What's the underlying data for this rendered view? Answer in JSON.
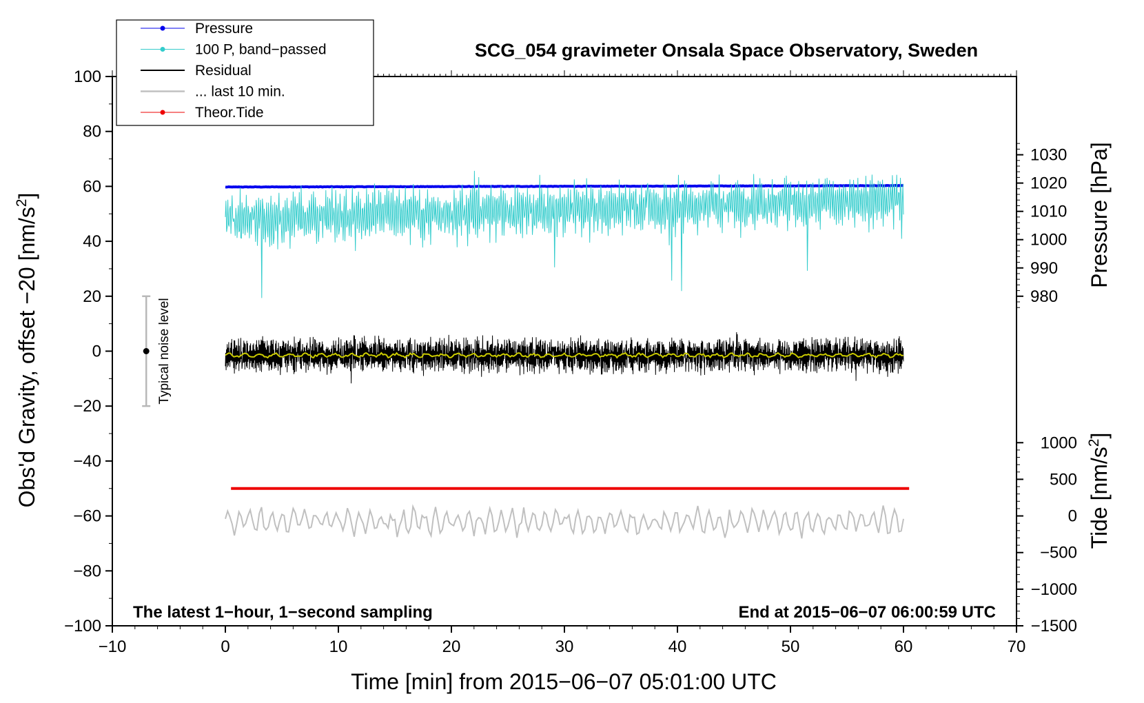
{
  "chart_data": {
    "type": "line",
    "title": "SCG_054 gravimeter Onsala Space Observatory, Sweden",
    "xlabel": "Time [min] from 2015−06−07 05:01:00 UTC",
    "ylabel": "Obs'd Gravity, offset −20 [nm/s²]",
    "ylabel_right_top": "Pressure [hPa]",
    "ylabel_right_bottom": "Tide [nm/s²]",
    "xlim": [
      -10,
      70
    ],
    "ylim": [
      -100,
      100
    ],
    "xticks": [
      -10,
      0,
      10,
      20,
      30,
      40,
      50,
      60,
      70
    ],
    "xtick_labels": [
      "−10",
      "0",
      "10",
      "20",
      "30",
      "40",
      "50",
      "60",
      "70"
    ],
    "yticks": [
      -100,
      -80,
      -60,
      -40,
      -20,
      0,
      20,
      40,
      60,
      80,
      100
    ],
    "ytick_labels": [
      "−100",
      "−80",
      "−60",
      "−40",
      "−20",
      "0",
      "20",
      "40",
      "60",
      "80",
      "100"
    ],
    "pressure_axis": {
      "ticks": [
        980,
        990,
        1000,
        1010,
        1020,
        1030
      ],
      "tick_labels": [
        "980",
        "990",
        "1000",
        "1010",
        "1020",
        "1030"
      ],
      "gravity_at_980": 20,
      "gravity_per_hpa": 1.03
    },
    "tide_axis": {
      "ticks": [
        -1500,
        -1000,
        -500,
        0,
        500,
        1000
      ],
      "tick_labels": [
        "−1500",
        "−1000",
        "−500",
        "0",
        "500",
        "1000"
      ],
      "gravity_at_minus_1500": -100,
      "gravity_per_nms2": 0.02667
    },
    "grid": false,
    "legend_position": "top-left",
    "legend": [
      {
        "label": "Pressure",
        "color": "#0000ee",
        "marker": true
      },
      {
        "label": "100 P, band−passed",
        "color": "#33cccc",
        "marker": true
      },
      {
        "label": "Residual",
        "color": "#000000",
        "marker": false
      },
      {
        "label": "... last 10 min.",
        "color": "#c0c0c0",
        "marker": false
      },
      {
        "label": "Theor.Tide",
        "color": "#ee0000",
        "marker": true
      }
    ],
    "series": [
      {
        "name": "Pressure",
        "color": "#0000ee",
        "x_range": [
          0,
          60
        ],
        "start_hpa": 1018.6,
        "end_hpa": 1019.1
      },
      {
        "name": "100 P, band−passed",
        "color": "#33cccc",
        "x_range": [
          0,
          60
        ],
        "baseline_start": 48,
        "baseline_end": 55,
        "amplitude": 9
      },
      {
        "name": "Residual",
        "color": "#000000",
        "x_range": [
          0,
          60
        ],
        "baseline": -1.5,
        "amplitude": 5
      },
      {
        "name": "... last 10 min.",
        "color": "#c0c0c0",
        "x_range": [
          0,
          60
        ],
        "baseline": -62,
        "amplitude": 4
      },
      {
        "name": "Theor.Tide",
        "color": "#ee0000",
        "x_range": [
          0.5,
          60.5
        ],
        "value": -50
      },
      {
        "color": "#cccc00",
        "x_range": [
          0,
          60
        ],
        "baseline": -1.5
      }
    ],
    "noise_level": {
      "label": "Typical noise level",
      "x": -7,
      "y": 0,
      "low": -20,
      "high": 20
    },
    "annotations": {
      "bottom_left": "The latest 1−hour, 1−second sampling",
      "bottom_right": "End at 2015−06−07 06:00:59 UTC"
    }
  }
}
